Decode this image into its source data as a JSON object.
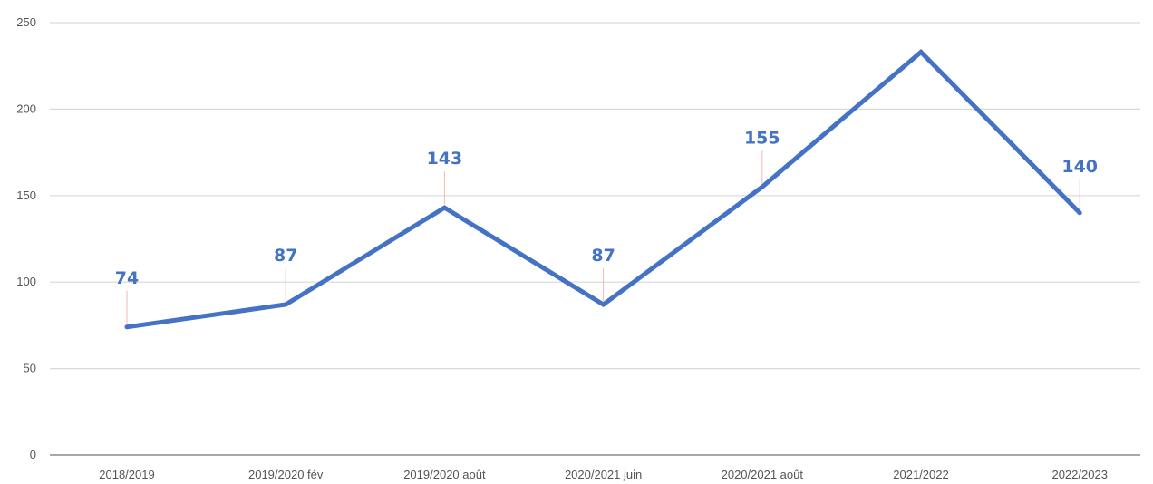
{
  "chart_data": {
    "type": "line",
    "categories": [
      "2018/2019",
      "2019/2020 fév",
      "2019/2020 août",
      "2020/2021 juin",
      "2020/2021 août",
      "2021/2022",
      "2022/2023"
    ],
    "series": [
      {
        "values": [
          74,
          87,
          143,
          87,
          155,
          233,
          140
        ]
      }
    ],
    "data_labels": [
      "74",
      "87",
      "143",
      "87",
      "155",
      "",
      "140"
    ],
    "yticks": [
      "0",
      "50",
      "100",
      "150",
      "200",
      "250"
    ],
    "ylim": [
      0,
      250
    ],
    "grid": true,
    "legend": "none",
    "title": "",
    "xlabel": "",
    "ylabel": "",
    "colors": {
      "line": "#4472C4",
      "label": "#4472C4",
      "grid": "#d9d9d9",
      "axis": "#8c8c8c",
      "tick_text": "#555555"
    }
  }
}
